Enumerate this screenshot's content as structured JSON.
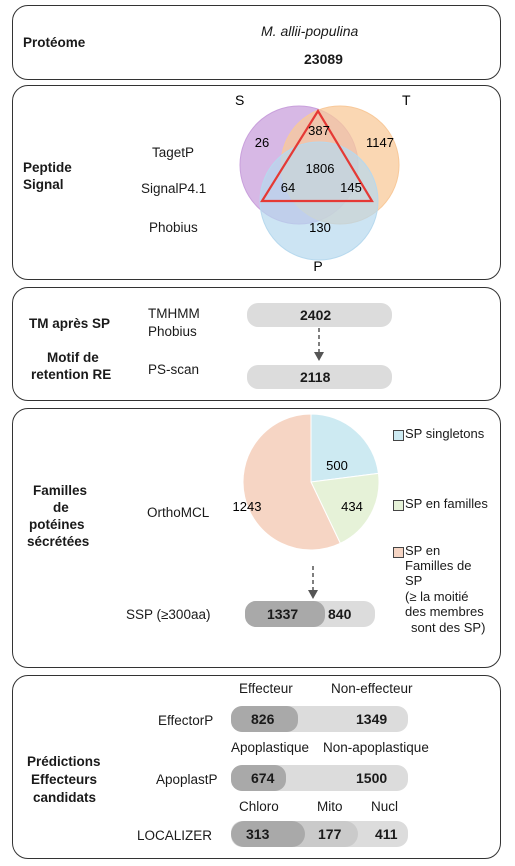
{
  "proteome": {
    "label": "Protéome",
    "species": "M. allii-populina",
    "count": "23089"
  },
  "signal": {
    "label_line1": "Peptide",
    "label_line2": "Signal",
    "tools": [
      "TagetP",
      "SignalP4.1",
      "Phobius"
    ],
    "venn": {
      "set_labels": [
        "S",
        "T",
        "P"
      ],
      "colors": {
        "S": "#c9a0dc",
        "T": "#f8c99a",
        "P": "#b7d9ee",
        "triangle": "#e53935"
      },
      "regions": {
        "S_only": "26",
        "T_only": "1147",
        "P_only": "130",
        "ST": "387",
        "SP": "64",
        "TP": "145",
        "STP": "1806"
      }
    }
  },
  "tm": {
    "label1": "TM après SP",
    "label2_line1": "Motif de",
    "label2_line2": "retention RE",
    "tools1_line1": "TMHMM",
    "tools1_line2": "Phobius",
    "tool2": "PS-scan",
    "value1": "2402",
    "value2": "2118"
  },
  "families": {
    "label_lines": [
      "Familles",
      "de",
      "potéines",
      "sécrétées"
    ],
    "tool": "OrthoMCL",
    "pie": {
      "slices": [
        {
          "label": "SP singletons",
          "value": 500,
          "color": "#cdeaf2"
        },
        {
          "label": "SP en familles",
          "value": 434,
          "color": "#e6f2d8"
        },
        {
          "label": "SP en Familles de SP (≥ la moitié des membres sont des SP)",
          "value": 1243,
          "color": "#f6d5c4"
        }
      ],
      "value_labels": [
        "500",
        "434",
        "1243"
      ]
    },
    "legend": {
      "item1": "SP singletons",
      "item2": "SP en familles",
      "item3_lines": [
        "SP en",
        "Familles de",
        "SP",
        "(≥ la moitié",
        "des membres",
        "sont des SP)"
      ]
    },
    "ssp_label": "SSP (≥300aa)",
    "ssp_value": "1337",
    "ssp_other": "840",
    "ssp_fraction": 0.614
  },
  "predictions": {
    "label_lines": [
      "Prédictions",
      "Effecteurs",
      "candidats"
    ],
    "effector": {
      "tool": "EffectorP",
      "head_left": "Effecteur",
      "head_right": "Non-effecteur",
      "left": "826",
      "right": "1349",
      "fraction": 0.38
    },
    "apoplast": {
      "tool": "ApoplastP",
      "head_left": "Apoplastique",
      "head_right": "Non-apoplastique",
      "left": "674",
      "right": "1500",
      "fraction": 0.31
    },
    "localizer": {
      "tool": "LOCALIZER",
      "heads": [
        "Chloro",
        "Mito",
        "Nucl"
      ],
      "values": [
        "313",
        "177",
        "411"
      ]
    }
  }
}
